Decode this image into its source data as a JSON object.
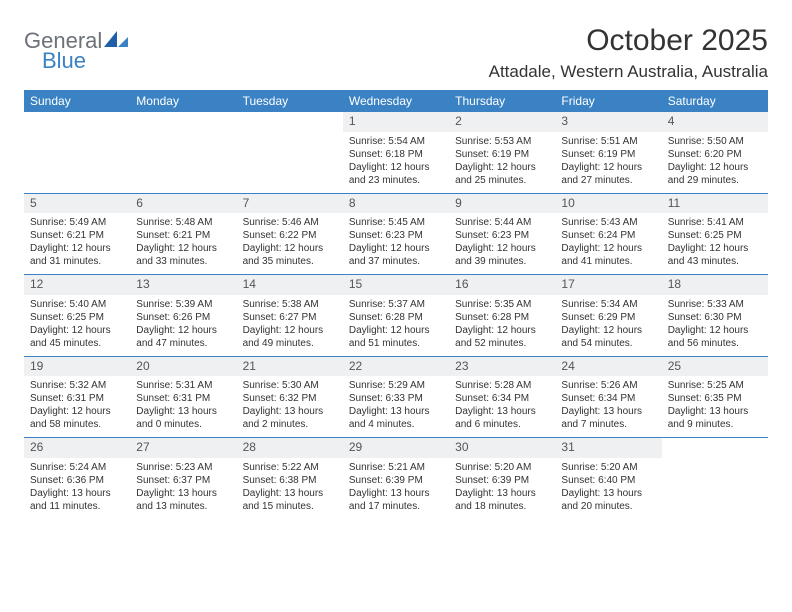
{
  "logo": {
    "line1": "General",
    "line2": "Blue"
  },
  "title": "October 2025",
  "location": "Attadale, Western Australia, Australia",
  "colors": {
    "header_bg": "#3b82c4",
    "header_text": "#ffffff",
    "daynum_bg": "#eef0f1",
    "week_border": "#3b82c4",
    "body_text": "#333333",
    "logo_gray": "#6c7278",
    "logo_blue": "#3b82c4"
  },
  "day_names": [
    "Sunday",
    "Monday",
    "Tuesday",
    "Wednesday",
    "Thursday",
    "Friday",
    "Saturday"
  ],
  "weeks": [
    [
      {
        "n": "",
        "sr": "",
        "ss": "",
        "dl": ""
      },
      {
        "n": "",
        "sr": "",
        "ss": "",
        "dl": ""
      },
      {
        "n": "",
        "sr": "",
        "ss": "",
        "dl": ""
      },
      {
        "n": "1",
        "sr": "Sunrise: 5:54 AM",
        "ss": "Sunset: 6:18 PM",
        "dl": "Daylight: 12 hours and 23 minutes."
      },
      {
        "n": "2",
        "sr": "Sunrise: 5:53 AM",
        "ss": "Sunset: 6:19 PM",
        "dl": "Daylight: 12 hours and 25 minutes."
      },
      {
        "n": "3",
        "sr": "Sunrise: 5:51 AM",
        "ss": "Sunset: 6:19 PM",
        "dl": "Daylight: 12 hours and 27 minutes."
      },
      {
        "n": "4",
        "sr": "Sunrise: 5:50 AM",
        "ss": "Sunset: 6:20 PM",
        "dl": "Daylight: 12 hours and 29 minutes."
      }
    ],
    [
      {
        "n": "5",
        "sr": "Sunrise: 5:49 AM",
        "ss": "Sunset: 6:21 PM",
        "dl": "Daylight: 12 hours and 31 minutes."
      },
      {
        "n": "6",
        "sr": "Sunrise: 5:48 AM",
        "ss": "Sunset: 6:21 PM",
        "dl": "Daylight: 12 hours and 33 minutes."
      },
      {
        "n": "7",
        "sr": "Sunrise: 5:46 AM",
        "ss": "Sunset: 6:22 PM",
        "dl": "Daylight: 12 hours and 35 minutes."
      },
      {
        "n": "8",
        "sr": "Sunrise: 5:45 AM",
        "ss": "Sunset: 6:23 PM",
        "dl": "Daylight: 12 hours and 37 minutes."
      },
      {
        "n": "9",
        "sr": "Sunrise: 5:44 AM",
        "ss": "Sunset: 6:23 PM",
        "dl": "Daylight: 12 hours and 39 minutes."
      },
      {
        "n": "10",
        "sr": "Sunrise: 5:43 AM",
        "ss": "Sunset: 6:24 PM",
        "dl": "Daylight: 12 hours and 41 minutes."
      },
      {
        "n": "11",
        "sr": "Sunrise: 5:41 AM",
        "ss": "Sunset: 6:25 PM",
        "dl": "Daylight: 12 hours and 43 minutes."
      }
    ],
    [
      {
        "n": "12",
        "sr": "Sunrise: 5:40 AM",
        "ss": "Sunset: 6:25 PM",
        "dl": "Daylight: 12 hours and 45 minutes."
      },
      {
        "n": "13",
        "sr": "Sunrise: 5:39 AM",
        "ss": "Sunset: 6:26 PM",
        "dl": "Daylight: 12 hours and 47 minutes."
      },
      {
        "n": "14",
        "sr": "Sunrise: 5:38 AM",
        "ss": "Sunset: 6:27 PM",
        "dl": "Daylight: 12 hours and 49 minutes."
      },
      {
        "n": "15",
        "sr": "Sunrise: 5:37 AM",
        "ss": "Sunset: 6:28 PM",
        "dl": "Daylight: 12 hours and 51 minutes."
      },
      {
        "n": "16",
        "sr": "Sunrise: 5:35 AM",
        "ss": "Sunset: 6:28 PM",
        "dl": "Daylight: 12 hours and 52 minutes."
      },
      {
        "n": "17",
        "sr": "Sunrise: 5:34 AM",
        "ss": "Sunset: 6:29 PM",
        "dl": "Daylight: 12 hours and 54 minutes."
      },
      {
        "n": "18",
        "sr": "Sunrise: 5:33 AM",
        "ss": "Sunset: 6:30 PM",
        "dl": "Daylight: 12 hours and 56 minutes."
      }
    ],
    [
      {
        "n": "19",
        "sr": "Sunrise: 5:32 AM",
        "ss": "Sunset: 6:31 PM",
        "dl": "Daylight: 12 hours and 58 minutes."
      },
      {
        "n": "20",
        "sr": "Sunrise: 5:31 AM",
        "ss": "Sunset: 6:31 PM",
        "dl": "Daylight: 13 hours and 0 minutes."
      },
      {
        "n": "21",
        "sr": "Sunrise: 5:30 AM",
        "ss": "Sunset: 6:32 PM",
        "dl": "Daylight: 13 hours and 2 minutes."
      },
      {
        "n": "22",
        "sr": "Sunrise: 5:29 AM",
        "ss": "Sunset: 6:33 PM",
        "dl": "Daylight: 13 hours and 4 minutes."
      },
      {
        "n": "23",
        "sr": "Sunrise: 5:28 AM",
        "ss": "Sunset: 6:34 PM",
        "dl": "Daylight: 13 hours and 6 minutes."
      },
      {
        "n": "24",
        "sr": "Sunrise: 5:26 AM",
        "ss": "Sunset: 6:34 PM",
        "dl": "Daylight: 13 hours and 7 minutes."
      },
      {
        "n": "25",
        "sr": "Sunrise: 5:25 AM",
        "ss": "Sunset: 6:35 PM",
        "dl": "Daylight: 13 hours and 9 minutes."
      }
    ],
    [
      {
        "n": "26",
        "sr": "Sunrise: 5:24 AM",
        "ss": "Sunset: 6:36 PM",
        "dl": "Daylight: 13 hours and 11 minutes."
      },
      {
        "n": "27",
        "sr": "Sunrise: 5:23 AM",
        "ss": "Sunset: 6:37 PM",
        "dl": "Daylight: 13 hours and 13 minutes."
      },
      {
        "n": "28",
        "sr": "Sunrise: 5:22 AM",
        "ss": "Sunset: 6:38 PM",
        "dl": "Daylight: 13 hours and 15 minutes."
      },
      {
        "n": "29",
        "sr": "Sunrise: 5:21 AM",
        "ss": "Sunset: 6:39 PM",
        "dl": "Daylight: 13 hours and 17 minutes."
      },
      {
        "n": "30",
        "sr": "Sunrise: 5:20 AM",
        "ss": "Sunset: 6:39 PM",
        "dl": "Daylight: 13 hours and 18 minutes."
      },
      {
        "n": "31",
        "sr": "Sunrise: 5:20 AM",
        "ss": "Sunset: 6:40 PM",
        "dl": "Daylight: 13 hours and 20 minutes."
      },
      {
        "n": "",
        "sr": "",
        "ss": "",
        "dl": ""
      }
    ]
  ]
}
